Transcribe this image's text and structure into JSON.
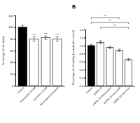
{
  "chart_data": [
    {
      "type": "bar",
      "y_label": "Percentage of cell viability",
      "categories": [
        "Control",
        "Resveratrol 10 µM",
        "Curcumin 10 µM",
        "Resveratrol+Curcumin"
      ],
      "values": [
        100,
        80,
        82,
        80
      ],
      "errors": [
        3,
        4,
        3,
        4
      ],
      "colors": [
        "#000000",
        "#ffffff",
        "#ffffff",
        "#ffffff"
      ],
      "significance": [
        null,
        "***",
        "***",
        "***"
      ],
      "ylim": [
        0,
        120
      ],
      "yticks": [
        0,
        20,
        40,
        60,
        80,
        100,
        120
      ]
    },
    {
      "type": "bar",
      "title": "B",
      "y_label": "Percentage of cell viability (normalised to control)",
      "categories": [
        "Control",
        "DOPE 10",
        "DOPE 10+Resveratrol",
        "DOPE 10+Curcumin",
        "DOPE 10+Res+Cur"
      ],
      "values": [
        1.0,
        1.08,
        0.95,
        0.88,
        0.65
      ],
      "errors": [
        0.03,
        0.04,
        0.03,
        0.03,
        0.03
      ],
      "colors": [
        "#000000",
        "#ffffff",
        "#ffffff",
        "#ffffff",
        "#ffffff"
      ],
      "comparisons": [
        {
          "from": 1,
          "to": 4,
          "label": "***"
        },
        {
          "from": 0,
          "to": 4,
          "label": "***"
        },
        {
          "from": 0,
          "to": 3,
          "label": "***"
        }
      ],
      "ylim": [
        0,
        1.4
      ],
      "yticks": [
        {
          "value": 0,
          "label": "0.0"
        },
        {
          "value": 0.2,
          "label": "0.2"
        },
        {
          "value": 0.4,
          "label": "0.4"
        },
        {
          "value": 0.6,
          "label": "0.6"
        },
        {
          "value": 0.8,
          "label": "0.8"
        },
        {
          "value": 1,
          "label": "1.0"
        },
        {
          "value": 1.2,
          "label": "1.2"
        },
        {
          "value": 1.4,
          "label": "1.4"
        }
      ]
    }
  ]
}
